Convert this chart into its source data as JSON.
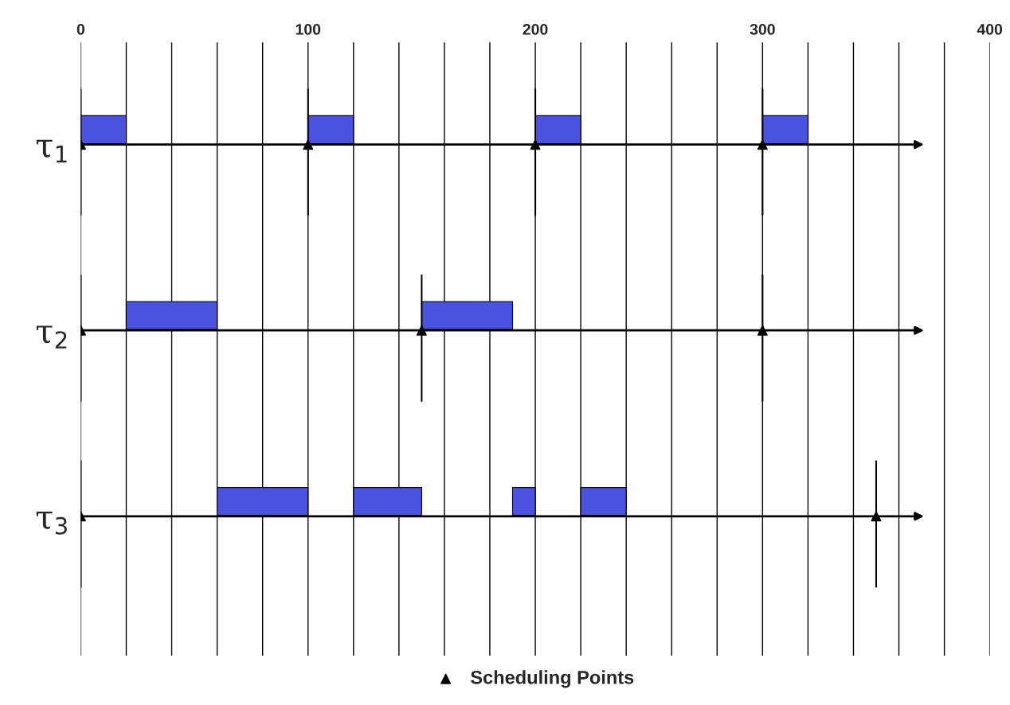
{
  "chart_data": {
    "type": "bar",
    "orientation": "horizontal",
    "categories": [
      "τ$_{1}$",
      "τ$_{2}$",
      "τ$_{3}$"
    ],
    "series": [
      {
        "color": "#4b52e0",
        "values": [
          20,
          40,
          40
        ],
        "base": [
          0,
          20,
          60
        ]
      },
      {
        "color": "#4b52e0",
        "values": [
          20,
          40,
          30
        ],
        "base": [
          100,
          150,
          120
        ]
      },
      {
        "color": "#4b52e0",
        "values": [
          20,
          null,
          10
        ],
        "base": [
          200,
          null,
          190
        ]
      },
      {
        "color": "#4b52e0",
        "values": [
          20,
          null,
          20
        ],
        "base": [
          300,
          null,
          220
        ]
      },
      {
        "type": "scatter",
        "name": "Scheduling Points",
        "marker": "triangle",
        "color": "#000000",
        "values": [
          0,
          0,
          0
        ]
      },
      {
        "type": "scatter",
        "marker": "triangle",
        "color": "#000000",
        "values": [
          100,
          150,
          350
        ]
      },
      {
        "type": "scatter",
        "marker": "triangle",
        "color": "#000000",
        "values": [
          200,
          300,
          null
        ]
      },
      {
        "type": "scatter",
        "marker": "triangle",
        "color": "#000000",
        "values": [
          300,
          null,
          null
        ]
      }
    ],
    "xlim": [
      0,
      400
    ],
    "xticks": [
      0,
      {
        "value": 20,
        "label": null
      },
      {
        "value": 40,
        "label": null
      },
      {
        "value": 60,
        "label": null
      },
      {
        "value": 80,
        "label": null
      },
      100,
      {
        "value": 120,
        "label": null
      },
      {
        "value": 140,
        "label": null
      },
      {
        "value": 160,
        "label": null
      },
      {
        "value": 180,
        "label": null
      },
      200,
      {
        "value": 220,
        "label": null
      },
      {
        "value": 240,
        "label": null
      },
      {
        "value": 260,
        "label": null
      },
      {
        "value": 280,
        "label": null
      },
      300,
      {
        "value": 320,
        "label": null
      },
      {
        "value": 340,
        "label": null
      },
      {
        "value": 360,
        "label": null
      },
      {
        "value": 380,
        "label": null
      },
      400
    ],
    "grid": "x",
    "legend": "bottom"
  }
}
